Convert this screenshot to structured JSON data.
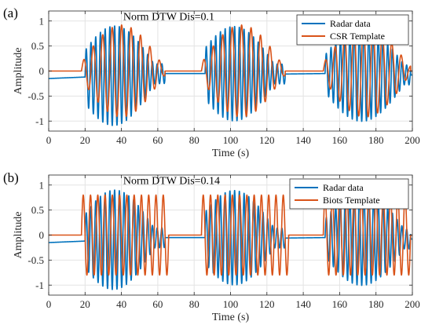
{
  "colors": {
    "radar": "#0072BD",
    "template": "#D95319",
    "grid": "#e3e3e3",
    "axis": "#262626"
  },
  "chart_data": [
    {
      "type": "line",
      "panel_label": "(a)",
      "annotation": "Norm DTW Dis=0.1",
      "xlabel": "Time (s)",
      "ylabel": "Amplitude",
      "xlim": [
        0,
        200
      ],
      "ylim": [
        -1.2,
        1.2
      ],
      "xticks": [
        0,
        20,
        40,
        60,
        80,
        100,
        120,
        140,
        160,
        180,
        200
      ],
      "yticks": [
        -1,
        -0.5,
        0,
        0.5,
        1
      ],
      "ytick_labels": [
        "-1",
        "-0.5",
        "0",
        "0.5",
        "1"
      ],
      "grid": true,
      "legend_position": "top-right",
      "series": [
        {
          "name": "Radar data",
          "kind": "radar",
          "baseline": [
            [
              0,
              -0.15
            ],
            [
              20,
              -0.12
            ],
            [
              64,
              -0.05
            ],
            [
              86,
              -0.05
            ],
            [
              130,
              -0.06
            ],
            [
              152,
              -0.05
            ],
            [
              200,
              -0.08
            ]
          ],
          "bursts": [
            {
              "start": 20,
              "end": 64,
              "period": 2.6,
              "peak_time": 36,
              "peak_amp": 1.0,
              "min_amp": 0.2
            },
            {
              "start": 86,
              "end": 130,
              "period": 2.6,
              "peak_time": 102,
              "peak_amp": 0.95,
              "min_amp": 0.2
            },
            {
              "start": 152,
              "end": 199,
              "period": 2.6,
              "peak_time": 172,
              "peak_amp": 0.95,
              "min_amp": 0.2
            }
          ]
        },
        {
          "name": "CSR Template",
          "kind": "template",
          "baseline": [
            [
              0,
              0
            ],
            [
              200,
              0
            ]
          ],
          "bursts": [
            {
              "start": 18,
              "end": 64,
              "period": 5.2,
              "peak_time": 40,
              "peak_amp": 0.92,
              "min_amp": 0.1
            },
            {
              "start": 84,
              "end": 130,
              "period": 5.2,
              "peak_time": 106,
              "peak_amp": 0.92,
              "min_amp": 0.1
            },
            {
              "start": 151,
              "end": 199,
              "period": 5.2,
              "peak_time": 174,
              "peak_amp": 0.92,
              "min_amp": 0.1
            }
          ]
        }
      ]
    },
    {
      "type": "line",
      "panel_label": "(b)",
      "annotation": "Norm DTW Dis=0.14",
      "xlabel": "Time (s)",
      "ylabel": "Amplitude",
      "xlim": [
        0,
        200
      ],
      "ylim": [
        -1.2,
        1.2
      ],
      "xticks": [
        0,
        20,
        40,
        60,
        80,
        100,
        120,
        140,
        160,
        180,
        200
      ],
      "yticks": [
        -1,
        -0.5,
        0,
        0.5,
        1
      ],
      "ytick_labels": [
        "-1",
        "-0.5",
        "0",
        "0.5",
        "1"
      ],
      "grid": true,
      "legend_position": "top-right",
      "series": [
        {
          "name": "Radar data",
          "kind": "radar",
          "baseline": [
            [
              0,
              -0.15
            ],
            [
              20,
              -0.12
            ],
            [
              64,
              -0.05
            ],
            [
              86,
              -0.05
            ],
            [
              130,
              -0.06
            ],
            [
              152,
              -0.05
            ],
            [
              200,
              -0.08
            ]
          ],
          "bursts": [
            {
              "start": 20,
              "end": 64,
              "period": 2.6,
              "peak_time": 36,
              "peak_amp": 1.0,
              "min_amp": 0.2
            },
            {
              "start": 86,
              "end": 130,
              "period": 2.6,
              "peak_time": 102,
              "peak_amp": 0.95,
              "min_amp": 0.2
            },
            {
              "start": 152,
              "end": 199,
              "period": 2.6,
              "peak_time": 172,
              "peak_amp": 0.95,
              "min_amp": 0.2
            }
          ]
        },
        {
          "name": "Biots Template",
          "kind": "template",
          "baseline": [
            [
              0,
              0
            ],
            [
              200,
              0
            ]
          ],
          "bursts": [
            {
              "start": 18,
              "end": 66,
              "period": 4.0,
              "peak_time": 42,
              "peak_amp": 0.8,
              "min_amp": 0.8
            },
            {
              "start": 84,
              "end": 132,
              "period": 4.0,
              "peak_time": 108,
              "peak_amp": 0.8,
              "min_amp": 0.8
            },
            {
              "start": 151,
              "end": 199,
              "period": 4.0,
              "peak_time": 175,
              "peak_amp": 0.8,
              "min_amp": 0.8
            }
          ]
        }
      ]
    }
  ]
}
